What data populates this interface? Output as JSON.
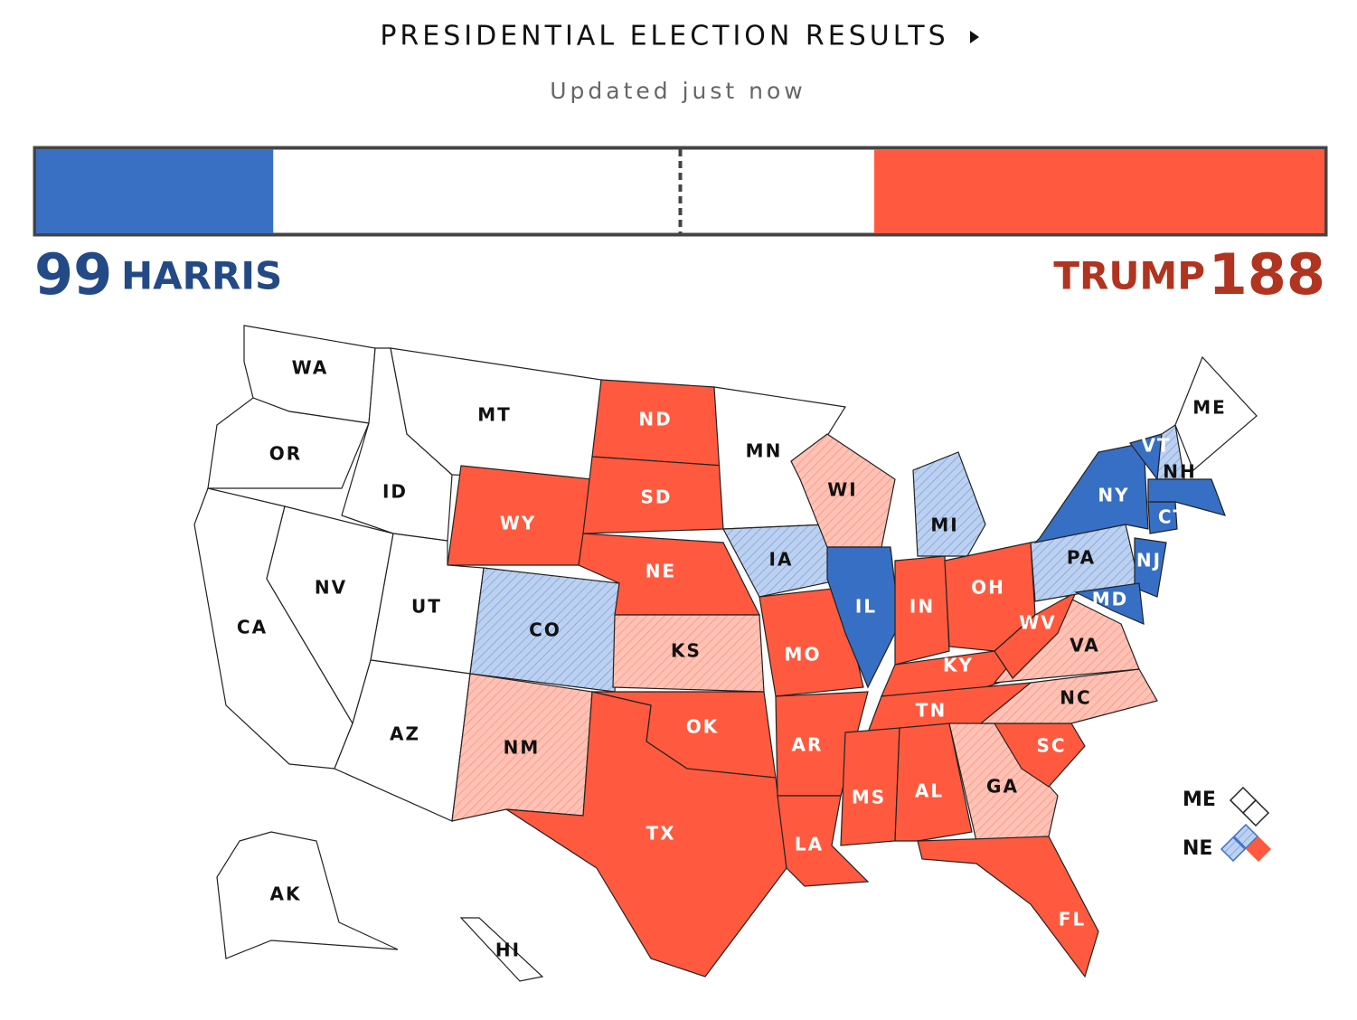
{
  "header": {
    "title": "PRESIDENTIAL ELECTION RESULTS",
    "updated": "Updated just now"
  },
  "tally": {
    "xlim": [
      0,
      538
    ],
    "harris": {
      "name": "HARRIS",
      "votes": 99,
      "color": "#3a70c4",
      "text_color": "#234a86"
    },
    "trump": {
      "name": "TRUMP",
      "votes": 188,
      "color": "#ff5a3f",
      "text_color": "#b0341f"
    }
  },
  "map": {
    "status_colors": {
      "dem": "#376fc4",
      "rep": "#ff5a3f",
      "lean-dem": "#bcd0f0",
      "lean-rep": "#ffc2b5",
      "none": "#ffffff"
    },
    "states": [
      {
        "label": "WA",
        "status": "none"
      },
      {
        "label": "OR",
        "status": "none"
      },
      {
        "label": "CA",
        "status": "none"
      },
      {
        "label": "NV",
        "status": "none"
      },
      {
        "label": "ID",
        "status": "none"
      },
      {
        "label": "MT",
        "status": "none"
      },
      {
        "label": "WY",
        "status": "rep"
      },
      {
        "label": "UT",
        "status": "none"
      },
      {
        "label": "AZ",
        "status": "none"
      },
      {
        "label": "CO",
        "status": "lean-dem"
      },
      {
        "label": "NM",
        "status": "lean-rep"
      },
      {
        "label": "ND",
        "status": "rep"
      },
      {
        "label": "SD",
        "status": "rep"
      },
      {
        "label": "NE",
        "status": "rep"
      },
      {
        "label": "KS",
        "status": "lean-rep"
      },
      {
        "label": "OK",
        "status": "rep"
      },
      {
        "label": "TX",
        "status": "rep"
      },
      {
        "label": "MN",
        "status": "none"
      },
      {
        "label": "IA",
        "status": "lean-dem"
      },
      {
        "label": "MO",
        "status": "rep"
      },
      {
        "label": "AR",
        "status": "rep"
      },
      {
        "label": "LA",
        "status": "rep"
      },
      {
        "label": "WI",
        "status": "lean-rep"
      },
      {
        "label": "IL",
        "status": "dem"
      },
      {
        "label": "MI",
        "status": "lean-dem"
      },
      {
        "label": "IN",
        "status": "rep"
      },
      {
        "label": "OH",
        "status": "rep"
      },
      {
        "label": "KY",
        "status": "rep"
      },
      {
        "label": "TN",
        "status": "rep"
      },
      {
        "label": "MS",
        "status": "rep"
      },
      {
        "label": "AL",
        "status": "rep"
      },
      {
        "label": "GA",
        "status": "lean-rep"
      },
      {
        "label": "FL",
        "status": "rep"
      },
      {
        "label": "SC",
        "status": "rep"
      },
      {
        "label": "NC",
        "status": "lean-rep"
      },
      {
        "label": "VA",
        "status": "lean-rep"
      },
      {
        "label": "WV",
        "status": "rep"
      },
      {
        "label": "PA",
        "status": "lean-dem"
      },
      {
        "label": "NY",
        "status": "dem"
      },
      {
        "label": "NJ",
        "status": "dem"
      },
      {
        "label": "MD",
        "status": "dem"
      },
      {
        "label": "VT",
        "status": "dem"
      },
      {
        "label": "NH",
        "status": "lean-dem"
      },
      {
        "label": "ME",
        "status": "none"
      },
      {
        "label": "CT",
        "status": "dem"
      },
      {
        "label": null,
        "status": "dem"
      },
      {
        "label": "AK",
        "status": "none"
      },
      {
        "label": "HI",
        "status": "none"
      }
    ],
    "legend": [
      {
        "label": "ME",
        "parts": [
          "none",
          "none"
        ]
      },
      {
        "label": "NE",
        "parts": [
          "lean-dem",
          "lean-dem",
          "rep"
        ]
      }
    ]
  }
}
